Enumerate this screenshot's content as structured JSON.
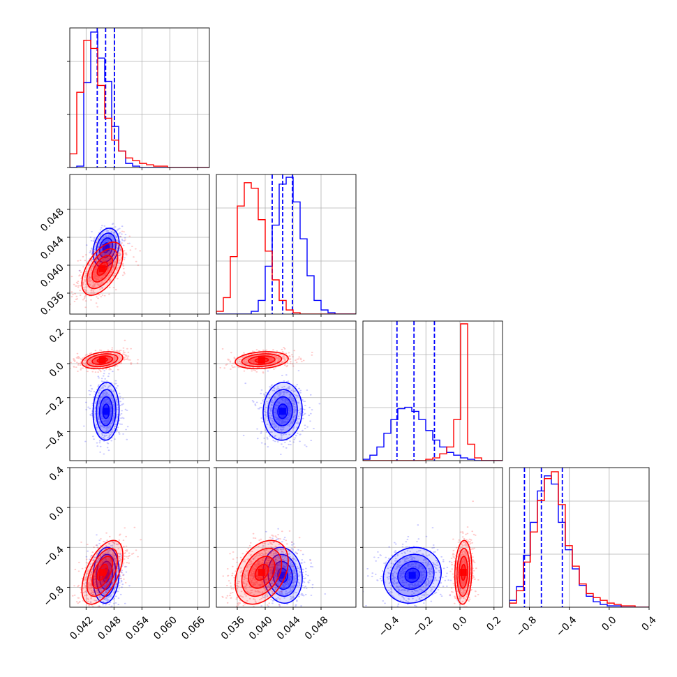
{
  "chart_data": {
    "type": "corner",
    "title": "",
    "grid": true,
    "colors": {
      "blue": "#0000ff",
      "red": "#ff0000"
    },
    "parameters": [
      {
        "index": 0,
        "range": [
          0.0385,
          0.0685
        ],
        "ticks": [
          "0.042",
          "0.048",
          "0.054",
          "0.060",
          "0.066"
        ],
        "tick_values": [
          0.042,
          0.048,
          0.054,
          0.06,
          0.066
        ]
      },
      {
        "index": 1,
        "range": [
          0.033,
          0.053
        ],
        "ticks": [
          "0.036",
          "0.040",
          "0.044",
          "0.048"
        ],
        "tick_values": [
          0.036,
          0.04,
          0.044,
          0.048
        ]
      },
      {
        "index": 2,
        "range": [
          -0.57,
          0.25
        ],
        "ticks": [
          "−0.4",
          "−0.2",
          "0.0",
          "0.2"
        ],
        "tick_values": [
          -0.4,
          -0.2,
          0.0,
          0.2
        ]
      },
      {
        "index": 3,
        "range": [
          -1.0,
          0.4
        ],
        "ticks": [
          "−0.8",
          "−0.4",
          "0.0",
          "0.4"
        ],
        "tick_values": [
          -0.8,
          -0.4,
          0.0,
          0.4
        ]
      }
    ],
    "series": [
      {
        "color": "blue",
        "histograms": [
          {
            "edges_start": 0.0385,
            "bin_width": 0.0015,
            "counts": [
              0,
              0.01,
              0.62,
              0.99,
              0.8,
              0.63,
              0.3,
              0.12,
              0.03,
              0.01,
              0,
              0,
              0,
              0,
              0,
              0,
              0,
              0,
              0,
              0
            ]
          },
          {
            "edges_start": 0.033,
            "bin_width": 0.001,
            "counts": [
              0,
              0,
              0,
              0,
              0,
              0.02,
              0.1,
              0.35,
              0.65,
              0.95,
              1.0,
              0.82,
              0.55,
              0.28,
              0.1,
              0.03,
              0.01,
              0,
              0,
              0
            ]
          },
          {
            "edges_start": -0.57,
            "bin_width": 0.041,
            "counts": [
              0.01,
              0.04,
              0.1,
              0.2,
              0.3,
              0.38,
              0.39,
              0.36,
              0.3,
              0.22,
              0.15,
              0.1,
              0.06,
              0.04,
              0.02,
              0.01,
              0,
              0,
              0,
              0
            ]
          },
          {
            "edges_start": -1.0,
            "bin_width": 0.07,
            "counts": [
              0.05,
              0.15,
              0.38,
              0.62,
              0.85,
              0.96,
              0.9,
              0.62,
              0.42,
              0.28,
              0.16,
              0.08,
              0.04,
              0.02,
              0.01,
              0.01,
              0,
              0,
              0,
              0
            ]
          }
        ],
        "quantiles": [
          [
            0.0444,
            0.0462,
            0.0481
          ],
          [
            0.041,
            0.0425,
            0.0439
          ],
          [
            -0.37,
            -0.27,
            -0.15
          ],
          [
            -0.85,
            -0.68,
            -0.47
          ]
        ],
        "means": [
          0.0463,
          0.0425,
          -0.28,
          -0.68
        ],
        "sds": [
          0.0014,
          0.0014,
          0.085,
          0.14
        ],
        "corr": [
          [
            1,
            0.25,
            0.05,
            0.1
          ],
          [
            0.25,
            1,
            0.05,
            -0.1
          ],
          [
            0.05,
            0.05,
            1,
            0.1
          ],
          [
            0.1,
            -0.1,
            0.1,
            1
          ]
        ]
      },
      {
        "color": "red",
        "histograms": [
          {
            "edges_start": 0.0385,
            "bin_width": 0.0015,
            "counts": [
              0.1,
              0.55,
              0.93,
              0.87,
              0.6,
              0.36,
              0.2,
              0.12,
              0.07,
              0.05,
              0.03,
              0.02,
              0.01,
              0.01,
              0,
              0,
              0,
              0,
              0,
              0
            ]
          },
          {
            "edges_start": 0.033,
            "bin_width": 0.001,
            "counts": [
              0.02,
              0.12,
              0.42,
              0.79,
              0.96,
              0.92,
              0.69,
              0.46,
              0.25,
              0.1,
              0.03,
              0.01,
              0,
              0,
              0,
              0,
              0,
              0,
              0,
              0
            ]
          },
          {
            "edges_start": -0.57,
            "bin_width": 0.041,
            "counts": [
              0,
              0,
              0,
              0,
              0,
              0,
              0,
              0,
              0,
              0.01,
              0.02,
              0.05,
              0.1,
              0.3,
              1.0,
              0.12,
              0.02,
              0,
              0,
              0
            ]
          },
          {
            "edges_start": -1.0,
            "bin_width": 0.07,
            "counts": [
              0.03,
              0.12,
              0.33,
              0.55,
              0.78,
              0.94,
              0.99,
              0.75,
              0.45,
              0.3,
              0.17,
              0.1,
              0.07,
              0.05,
              0.03,
              0.02,
              0.01,
              0.01,
              0,
              0
            ]
          }
        ],
        "means": [
          0.0455,
          0.0395,
          0.02,
          -0.65
        ],
        "sds": [
          0.0022,
          0.0019,
          0.025,
          0.16
        ],
        "corr": [
          [
            1,
            0.55,
            0.3,
            0.55
          ],
          [
            0.55,
            1,
            0.2,
            0.35
          ],
          [
            0.3,
            0.2,
            1,
            0.1
          ],
          [
            0.55,
            0.35,
            0.1,
            1
          ]
        ]
      }
    ]
  }
}
